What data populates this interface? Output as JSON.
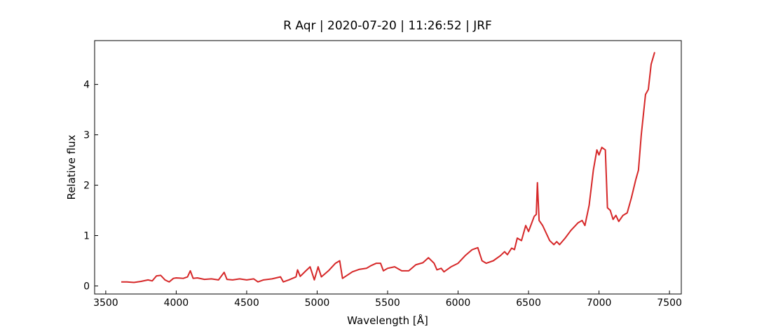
{
  "chart_data": {
    "type": "line",
    "title": "R Aqr | 2020-07-20 | 11:26:52 | JRF",
    "x_label": "Wavelength [Å]",
    "y_label": "Relative flux",
    "x": [
      3610,
      3650,
      3700,
      3750,
      3800,
      3830,
      3860,
      3890,
      3920,
      3950,
      3980,
      4000,
      4050,
      4080,
      4100,
      4120,
      4150,
      4200,
      4250,
      4300,
      4340,
      4360,
      4400,
      4450,
      4500,
      4550,
      4580,
      4620,
      4680,
      4740,
      4760,
      4800,
      4850,
      4861,
      4880,
      4920,
      4950,
      4980,
      5007,
      5030,
      5080,
      5130,
      5160,
      5180,
      5250,
      5300,
      5350,
      5380,
      5420,
      5450,
      5470,
      5500,
      5550,
      5600,
      5650,
      5700,
      5750,
      5790,
      5830,
      5850,
      5880,
      5900,
      5950,
      6000,
      6050,
      6100,
      6140,
      6170,
      6200,
      6250,
      6300,
      6330,
      6350,
      6380,
      6400,
      6420,
      6450,
      6480,
      6500,
      6540,
      6555,
      6563,
      6575,
      6600,
      6650,
      6680,
      6700,
      6720,
      6760,
      6800,
      6850,
      6880,
      6900,
      6930,
      6960,
      6985,
      7000,
      7020,
      7045,
      7060,
      7080,
      7100,
      7120,
      7140,
      7170,
      7200,
      7230,
      7260,
      7280,
      7300,
      7330,
      7350,
      7370,
      7395
    ],
    "series": [
      {
        "name": "R Aqr",
        "color": "#d62728",
        "values": [
          0.08,
          0.08,
          0.07,
          0.09,
          0.12,
          0.1,
          0.2,
          0.21,
          0.12,
          0.08,
          0.15,
          0.16,
          0.15,
          0.18,
          0.3,
          0.15,
          0.16,
          0.13,
          0.14,
          0.12,
          0.27,
          0.13,
          0.12,
          0.14,
          0.12,
          0.14,
          0.08,
          0.12,
          0.14,
          0.18,
          0.08,
          0.12,
          0.18,
          0.32,
          0.19,
          0.3,
          0.38,
          0.12,
          0.38,
          0.18,
          0.3,
          0.45,
          0.5,
          0.15,
          0.28,
          0.33,
          0.35,
          0.4,
          0.45,
          0.45,
          0.3,
          0.35,
          0.38,
          0.3,
          0.3,
          0.42,
          0.46,
          0.56,
          0.45,
          0.32,
          0.35,
          0.28,
          0.38,
          0.45,
          0.6,
          0.72,
          0.76,
          0.5,
          0.45,
          0.5,
          0.6,
          0.68,
          0.62,
          0.75,
          0.72,
          0.95,
          0.9,
          1.2,
          1.08,
          1.38,
          1.42,
          2.05,
          1.3,
          1.2,
          0.9,
          0.82,
          0.88,
          0.82,
          0.95,
          1.1,
          1.25,
          1.3,
          1.2,
          1.6,
          2.3,
          2.7,
          2.6,
          2.75,
          2.7,
          1.55,
          1.5,
          1.32,
          1.4,
          1.28,
          1.4,
          1.45,
          1.75,
          2.1,
          2.3,
          3.0,
          3.8,
          3.9,
          4.4,
          4.64
        ]
      }
    ],
    "xlim": [
      3421,
      7584
    ],
    "ylim": [
      -0.16,
      4.87
    ],
    "xticks": [
      3500,
      4000,
      4500,
      5000,
      5500,
      6000,
      6500,
      7000,
      7500
    ],
    "yticks": [
      0,
      1,
      2,
      3,
      4
    ],
    "grid": false
  }
}
